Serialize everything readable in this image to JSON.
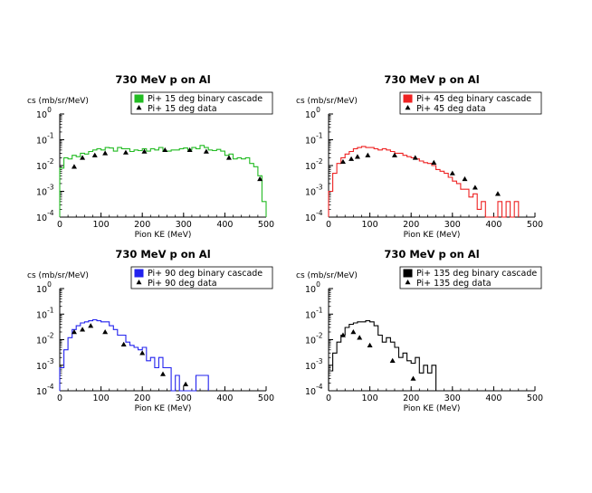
{
  "chart_data": [
    {
      "type": "line",
      "title": "730 MeV p on Al",
      "xlabel": "Pion KE (MeV)",
      "ylabel": "cs (mb/sr/MeV)",
      "xlim": [
        0,
        500
      ],
      "ylim_log10": [
        -4,
        0
      ],
      "log_y": true,
      "x_ticks": [
        "0",
        "100",
        "200",
        "300",
        "400",
        "500"
      ],
      "y_ticks": [
        {
          "base": "10",
          "exp": "-4"
        },
        {
          "base": "10",
          "exp": "-3"
        },
        {
          "base": "10",
          "exp": "-2"
        },
        {
          "base": "10",
          "exp": "-1"
        },
        {
          "base": "10",
          "exp": "0"
        }
      ],
      "legend_position": "top-right",
      "series": [
        {
          "name": "Pi+ 15 deg binary cascade",
          "style": "histogram",
          "color": "#22bb22",
          "bin_width": 10,
          "x": [
            0,
            10,
            20,
            30,
            40,
            50,
            60,
            70,
            80,
            90,
            100,
            110,
            120,
            130,
            140,
            150,
            160,
            170,
            180,
            190,
            200,
            210,
            220,
            230,
            240,
            250,
            260,
            270,
            280,
            290,
            300,
            310,
            320,
            330,
            340,
            350,
            360,
            370,
            380,
            390,
            400,
            410,
            420,
            430,
            440,
            450,
            460,
            470,
            480,
            490
          ],
          "y": [
            0.008,
            0.02,
            0.018,
            0.025,
            0.022,
            0.03,
            0.028,
            0.035,
            0.04,
            0.045,
            0.04,
            0.05,
            0.048,
            0.036,
            0.05,
            0.045,
            0.045,
            0.035,
            0.04,
            0.038,
            0.045,
            0.036,
            0.045,
            0.04,
            0.05,
            0.035,
            0.036,
            0.04,
            0.04,
            0.045,
            0.048,
            0.04,
            0.05,
            0.045,
            0.06,
            0.05,
            0.04,
            0.038,
            0.042,
            0.036,
            0.025,
            0.028,
            0.018,
            0.02,
            0.018,
            0.02,
            0.012,
            0.009,
            0.004,
            0.0004
          ]
        },
        {
          "name": "Pi+ 15 deg data",
          "style": "markers",
          "color": "#000000",
          "x": [
            35,
            55,
            85,
            110,
            160,
            205,
            255,
            315,
            355,
            410,
            485
          ],
          "y": [
            0.009,
            0.02,
            0.025,
            0.03,
            0.032,
            0.035,
            0.04,
            0.04,
            0.035,
            0.02,
            0.003
          ]
        }
      ]
    },
    {
      "type": "line",
      "title": "730 MeV p on Al",
      "xlabel": "Pion KE (MeV)",
      "ylabel": "cs (mb/sr/MeV)",
      "xlim": [
        0,
        500
      ],
      "ylim_log10": [
        -4,
        0
      ],
      "log_y": true,
      "x_ticks": [
        "0",
        "100",
        "200",
        "300",
        "400",
        "500"
      ],
      "y_ticks": [
        {
          "base": "10",
          "exp": "-4"
        },
        {
          "base": "10",
          "exp": "-3"
        },
        {
          "base": "10",
          "exp": "-2"
        },
        {
          "base": "10",
          "exp": "-1"
        },
        {
          "base": "10",
          "exp": "0"
        }
      ],
      "legend_position": "top-right",
      "series": [
        {
          "name": "Pi+ 45 deg binary cascade",
          "style": "histogram",
          "color": "#ee2222",
          "bin_width": 10,
          "x": [
            0,
            10,
            20,
            30,
            40,
            50,
            60,
            70,
            80,
            90,
            100,
            110,
            120,
            130,
            140,
            150,
            160,
            170,
            180,
            190,
            200,
            210,
            220,
            230,
            240,
            250,
            260,
            270,
            280,
            290,
            300,
            310,
            320,
            330,
            340,
            350,
            360,
            370,
            380,
            390,
            400,
            410,
            420,
            430,
            440,
            450
          ],
          "y": [
            0.001,
            0.005,
            0.012,
            0.02,
            0.028,
            0.035,
            0.045,
            0.05,
            0.055,
            0.05,
            0.05,
            0.045,
            0.04,
            0.045,
            0.04,
            0.035,
            0.03,
            0.03,
            0.025,
            0.022,
            0.02,
            0.018,
            0.015,
            0.013,
            0.012,
            0.01,
            0.007,
            0.006,
            0.005,
            0.0035,
            0.0025,
            0.002,
            0.0012,
            0.0012,
            0.0006,
            0.0008,
            0.0002,
            0.0004,
            0.0001,
            0.0001,
            0.0001,
            0.0004,
            0.0001,
            0.0004,
            0.0001,
            0.0004
          ]
        },
        {
          "name": "Pi+ 45 deg data",
          "style": "markers",
          "color": "#000000",
          "x": [
            35,
            55,
            70,
            95,
            160,
            210,
            255,
            300,
            330,
            355,
            410
          ],
          "y": [
            0.014,
            0.018,
            0.022,
            0.025,
            0.025,
            0.02,
            0.013,
            0.005,
            0.003,
            0.0014,
            0.0008
          ]
        }
      ]
    },
    {
      "type": "line",
      "title": "730 MeV p on Al",
      "xlabel": "Pion KE (MeV)",
      "ylabel": "cs (mb/sr/MeV)",
      "xlim": [
        0,
        500
      ],
      "ylim_log10": [
        -4,
        0
      ],
      "log_y": true,
      "x_ticks": [
        "0",
        "100",
        "200",
        "300",
        "400",
        "500"
      ],
      "y_ticks": [
        {
          "base": "10",
          "exp": "-4"
        },
        {
          "base": "10",
          "exp": "-3"
        },
        {
          "base": "10",
          "exp": "-2"
        },
        {
          "base": "10",
          "exp": "-1"
        },
        {
          "base": "10",
          "exp": "0"
        }
      ],
      "legend_position": "top-right",
      "series": [
        {
          "name": "Pi+ 90 deg binary cascade",
          "style": "histogram",
          "color": "#2222ee",
          "bin_width": 10,
          "x": [
            0,
            10,
            20,
            30,
            40,
            50,
            60,
            70,
            80,
            90,
            100,
            110,
            120,
            130,
            140,
            150,
            160,
            170,
            180,
            190,
            200,
            210,
            220,
            230,
            240,
            250,
            260,
            270,
            280,
            290,
            300,
            310,
            320,
            330,
            340,
            350
          ],
          "y": [
            0.0008,
            0.004,
            0.012,
            0.025,
            0.035,
            0.045,
            0.05,
            0.055,
            0.06,
            0.055,
            0.05,
            0.05,
            0.035,
            0.025,
            0.015,
            0.015,
            0.008,
            0.006,
            0.005,
            0.004,
            0.005,
            0.0015,
            0.002,
            0.0008,
            0.002,
            0.0008,
            0.0008,
            0.0001,
            0.0004,
            0.0001,
            0.0001,
            0.0001,
            0.0001,
            0.0004,
            0.0004,
            0.0004
          ]
        },
        {
          "name": "Pi+ 90 deg data",
          "style": "markers",
          "color": "#000000",
          "x": [
            35,
            55,
            75,
            110,
            155,
            200,
            250,
            305
          ],
          "y": [
            0.02,
            0.025,
            0.035,
            0.02,
            0.0065,
            0.003,
            0.00045,
            0.00018
          ]
        }
      ]
    },
    {
      "type": "line",
      "title": "730 MeV p on Al",
      "xlabel": "Pion KE (MeV)",
      "ylabel": "cs (mb/sr/MeV)",
      "xlim": [
        0,
        500
      ],
      "ylim_log10": [
        -4,
        0
      ],
      "log_y": true,
      "x_ticks": [
        "0",
        "100",
        "200",
        "300",
        "400",
        "500"
      ],
      "y_ticks": [
        {
          "base": "10",
          "exp": "-4"
        },
        {
          "base": "10",
          "exp": "-3"
        },
        {
          "base": "10",
          "exp": "-2"
        },
        {
          "base": "10",
          "exp": "-1"
        },
        {
          "base": "10",
          "exp": "0"
        }
      ],
      "legend_position": "top-right",
      "series": [
        {
          "name": "Pi+ 135 deg binary cascade",
          "style": "histogram",
          "color": "#000000",
          "bin_width": 10,
          "x": [
            0,
            10,
            20,
            30,
            40,
            50,
            60,
            70,
            80,
            90,
            100,
            110,
            120,
            130,
            140,
            150,
            160,
            170,
            180,
            190,
            200,
            210,
            220,
            230,
            240,
            250,
            260
          ],
          "y": [
            0.0006,
            0.003,
            0.008,
            0.015,
            0.03,
            0.04,
            0.045,
            0.05,
            0.05,
            0.055,
            0.05,
            0.035,
            0.015,
            0.008,
            0.012,
            0.008,
            0.005,
            0.002,
            0.003,
            0.0015,
            0.0012,
            0.002,
            0.0005,
            0.001,
            0.0005,
            0.001,
            0.0001
          ]
        },
        {
          "name": "Pi+ 135 deg data",
          "style": "markers",
          "color": "#000000",
          "x": [
            35,
            60,
            75,
            100,
            155,
            205
          ],
          "y": [
            0.015,
            0.02,
            0.012,
            0.006,
            0.0015,
            0.0003
          ]
        }
      ]
    }
  ]
}
